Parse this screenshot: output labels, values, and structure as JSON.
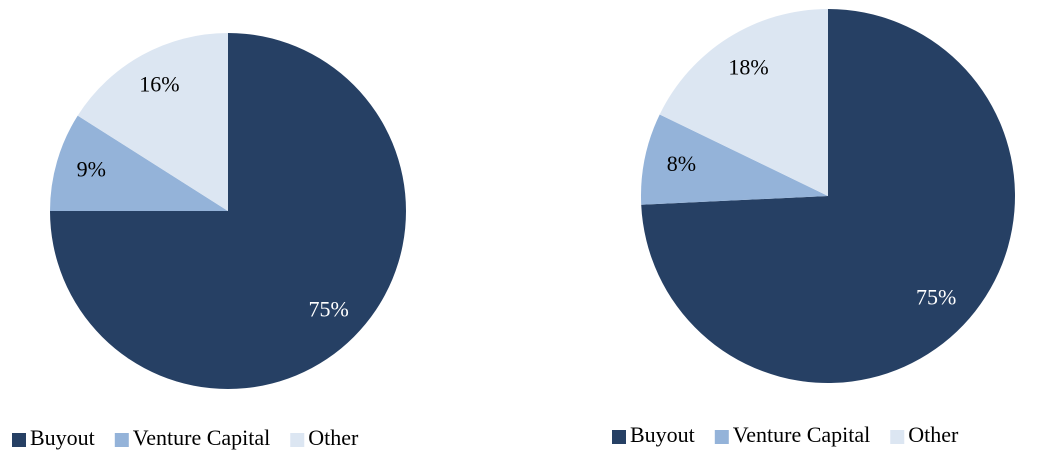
{
  "chart_data": [
    {
      "type": "pie",
      "categories": [
        "Buyout",
        "Venture Capital",
        "Other"
      ],
      "values": [
        75,
        9,
        16
      ],
      "value_labels": [
        "75%",
        "9%",
        "16%"
      ],
      "colors": [
        "#264064",
        "#94b3d9",
        "#dce6f2"
      ],
      "label_colors": [
        "#ffffff",
        "#000000",
        "#000000"
      ],
      "legend": "bottom"
    },
    {
      "type": "pie",
      "categories": [
        "Buyout",
        "Venture Capital",
        "Other"
      ],
      "values": [
        75,
        8,
        18
      ],
      "value_labels": [
        "75%",
        "8%",
        "18%"
      ],
      "colors": [
        "#264064",
        "#94b3d9",
        "#dce6f2"
      ],
      "label_colors": [
        "#ffffff",
        "#000000",
        "#000000"
      ],
      "legend": "bottom"
    }
  ]
}
